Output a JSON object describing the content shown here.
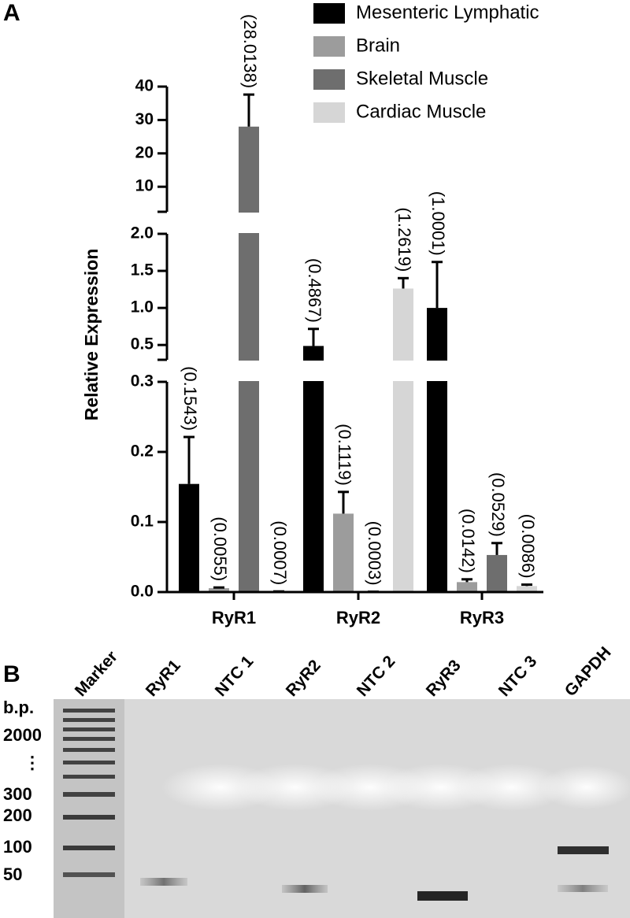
{
  "panel_labels": [
    "A",
    "B"
  ],
  "chart_data": {
    "type": "bar",
    "y_label": "Relative Expression",
    "categories": [
      "RyR1",
      "RyR2",
      "RyR3"
    ],
    "y_segments": [
      {
        "ylim": [
          0,
          0.3
        ],
        "yticks": [
          {
            "value": 0,
            "label": "0.0"
          },
          0.1,
          0.2,
          0.3
        ]
      },
      {
        "ylim": [
          0.3,
          2.0
        ],
        "yticks": [
          0.5,
          {
            "value": 1,
            "label": "1.0"
          },
          1.5,
          {
            "value": 2,
            "label": "2.0"
          }
        ]
      },
      {
        "ylim": [
          2.5,
          40
        ],
        "yticks": [
          10,
          20,
          30,
          40
        ]
      }
    ],
    "series": [
      {
        "name": "Mesenteric Lymphatic",
        "color": "#000000",
        "values": [
          0.1543,
          0.4867,
          1.0001
        ],
        "errors": [
          0.067,
          0.23,
          0.62
        ],
        "value_labels": [
          "(0.1543)",
          "(0.4867)",
          "(1.0001)"
        ]
      },
      {
        "name": "Brain",
        "color": "#9c9c9c",
        "values": [
          0.0055,
          0.1119,
          0.0142
        ],
        "errors": [
          0.001,
          0.031,
          0.004
        ],
        "value_labels": [
          "(0.0055)",
          "(0.1119)",
          "(0.0142)"
        ]
      },
      {
        "name": "Skeletal Muscle",
        "color": "#6e6e6e",
        "values": [
          28.0138,
          0.0003,
          0.0529
        ],
        "errors": [
          9.6,
          0.0002,
          0.017
        ],
        "value_labels": [
          "(28.0138)",
          "(0.0003)",
          "(0.0529)"
        ]
      },
      {
        "name": "Cardiac Muscle",
        "color": "#d6d6d6",
        "values": [
          0.0007,
          1.2619,
          0.0086
        ],
        "errors": [
          0.0002,
          0.14,
          0.002
        ],
        "value_labels": [
          "(0.0007)",
          "(1.2619)",
          "(0.0086)"
        ]
      }
    ]
  },
  "gel": {
    "size_axis_title": "b.p.",
    "size_labels": [
      "2000",
      "⋮",
      "300",
      "200",
      "100",
      "50"
    ],
    "lanes": [
      "Marker",
      "RyR1",
      "NTC 1",
      "RyR2",
      "NTC 2",
      "RyR3",
      "NTC 3",
      "GAPDH"
    ]
  }
}
